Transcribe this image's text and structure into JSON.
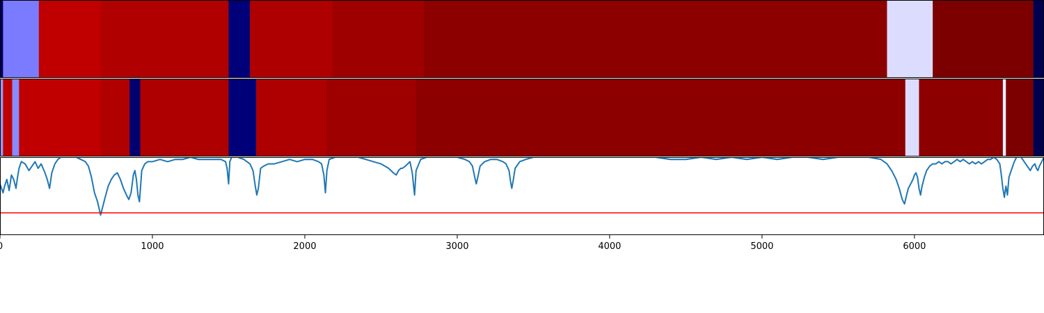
{
  "chart_data": {
    "type": "heatmap",
    "xlim": [
      0,
      6850
    ],
    "x_ticks": [
      0,
      1000,
      2000,
      3000,
      4000,
      5000,
      6000
    ],
    "x_tick_labels": [
      "0",
      "1000",
      "2000",
      "3000",
      "4000",
      "5000",
      "6000"
    ],
    "panels": [
      {
        "name": "",
        "kind": "segments",
        "segments": [
          {
            "start": 0,
            "end": 20,
            "color": "#000060"
          },
          {
            "start": 20,
            "end": 255,
            "color": "#7b7bff"
          },
          {
            "start": 255,
            "end": 660,
            "color": "#c00000"
          },
          {
            "start": 660,
            "end": 1500,
            "color": "#b00000"
          },
          {
            "start": 1500,
            "end": 1640,
            "color": "#000078"
          },
          {
            "start": 1640,
            "end": 2180,
            "color": "#ae0000"
          },
          {
            "start": 2180,
            "end": 2780,
            "color": "#9e0000"
          },
          {
            "start": 2780,
            "end": 5820,
            "color": "#8c0000"
          },
          {
            "start": 5820,
            "end": 6120,
            "color": "#dcdcff"
          },
          {
            "start": 6120,
            "end": 6780,
            "color": "#7c0000"
          },
          {
            "start": 6780,
            "end": 6850,
            "color": "#000050"
          }
        ]
      },
      {
        "name": "",
        "kind": "segments",
        "segments": [
          {
            "start": 0,
            "end": 20,
            "color": "#9a9aff"
          },
          {
            "start": 20,
            "end": 80,
            "color": "#c00000"
          },
          {
            "start": 80,
            "end": 125,
            "color": "#8a8aff"
          },
          {
            "start": 125,
            "end": 660,
            "color": "#c00000"
          },
          {
            "start": 660,
            "end": 850,
            "color": "#b00000"
          },
          {
            "start": 850,
            "end": 920,
            "color": "#000070"
          },
          {
            "start": 920,
            "end": 1500,
            "color": "#ae0000"
          },
          {
            "start": 1500,
            "end": 1680,
            "color": "#000078"
          },
          {
            "start": 1680,
            "end": 2140,
            "color": "#ae0000"
          },
          {
            "start": 2140,
            "end": 2730,
            "color": "#9e0000"
          },
          {
            "start": 2730,
            "end": 5940,
            "color": "#8c0000"
          },
          {
            "start": 5940,
            "end": 6030,
            "color": "#dcdcff"
          },
          {
            "start": 6030,
            "end": 6580,
            "color": "#8c0000"
          },
          {
            "start": 6580,
            "end": 6600,
            "color": "#eeeeff"
          },
          {
            "start": 6600,
            "end": 6780,
            "color": "#7c0000"
          },
          {
            "start": 6780,
            "end": 6850,
            "color": "#000050"
          }
        ]
      },
      {
        "name": "",
        "kind": "line",
        "ylim": [
          -0.35,
          0.0
        ],
        "line_color": "#1f77b4",
        "threshold": -0.25,
        "threshold_color": "#ff0000",
        "points": [
          [
            0,
            -0.12
          ],
          [
            10,
            -0.14
          ],
          [
            20,
            -0.16
          ],
          [
            30,
            -0.13
          ],
          [
            45,
            -0.1
          ],
          [
            60,
            -0.15
          ],
          [
            75,
            -0.08
          ],
          [
            90,
            -0.1
          ],
          [
            105,
            -0.14
          ],
          [
            115,
            -0.09
          ],
          [
            125,
            -0.05
          ],
          [
            140,
            -0.02
          ],
          [
            165,
            -0.03
          ],
          [
            190,
            -0.06
          ],
          [
            210,
            -0.04
          ],
          [
            230,
            -0.02
          ],
          [
            250,
            -0.05
          ],
          [
            270,
            -0.03
          ],
          [
            295,
            -0.07
          ],
          [
            310,
            -0.1
          ],
          [
            325,
            -0.14
          ],
          [
            340,
            -0.07
          ],
          [
            360,
            -0.03
          ],
          [
            380,
            -0.01
          ],
          [
            400,
            0.0
          ],
          [
            450,
            0.0
          ],
          [
            500,
            0.0
          ],
          [
            530,
            -0.01
          ],
          [
            560,
            -0.02
          ],
          [
            580,
            -0.04
          ],
          [
            600,
            -0.09
          ],
          [
            620,
            -0.16
          ],
          [
            640,
            -0.2
          ],
          [
            650,
            -0.23
          ],
          [
            660,
            -0.26
          ],
          [
            675,
            -0.22
          ],
          [
            690,
            -0.18
          ],
          [
            710,
            -0.13
          ],
          [
            730,
            -0.1
          ],
          [
            750,
            -0.08
          ],
          [
            770,
            -0.07
          ],
          [
            790,
            -0.1
          ],
          [
            810,
            -0.14
          ],
          [
            830,
            -0.17
          ],
          [
            845,
            -0.19
          ],
          [
            860,
            -0.16
          ],
          [
            875,
            -0.08
          ],
          [
            885,
            -0.06
          ],
          [
            895,
            -0.1
          ],
          [
            905,
            -0.17
          ],
          [
            915,
            -0.2
          ],
          [
            930,
            -0.06
          ],
          [
            950,
            -0.03
          ],
          [
            970,
            -0.02
          ],
          [
            1000,
            -0.02
          ],
          [
            1050,
            -0.01
          ],
          [
            1100,
            -0.02
          ],
          [
            1150,
            -0.01
          ],
          [
            1200,
            -0.01
          ],
          [
            1250,
            0.0
          ],
          [
            1300,
            -0.01
          ],
          [
            1350,
            -0.01
          ],
          [
            1400,
            -0.01
          ],
          [
            1450,
            -0.01
          ],
          [
            1480,
            -0.02
          ],
          [
            1490,
            -0.05
          ],
          [
            1500,
            -0.12
          ],
          [
            1508,
            -0.02
          ],
          [
            1520,
            0.0
          ],
          [
            1560,
            0.0
          ],
          [
            1600,
            -0.01
          ],
          [
            1640,
            -0.03
          ],
          [
            1660,
            -0.06
          ],
          [
            1675,
            -0.13
          ],
          [
            1685,
            -0.17
          ],
          [
            1695,
            -0.14
          ],
          [
            1710,
            -0.05
          ],
          [
            1730,
            -0.04
          ],
          [
            1760,
            -0.03
          ],
          [
            1800,
            -0.03
          ],
          [
            1850,
            -0.02
          ],
          [
            1900,
            -0.01
          ],
          [
            1950,
            -0.02
          ],
          [
            2000,
            -0.01
          ],
          [
            2050,
            -0.01
          ],
          [
            2090,
            -0.02
          ],
          [
            2110,
            -0.03
          ],
          [
            2125,
            -0.08
          ],
          [
            2135,
            -0.16
          ],
          [
            2145,
            -0.06
          ],
          [
            2160,
            -0.01
          ],
          [
            2200,
            0.0
          ],
          [
            2250,
            0.0
          ],
          [
            2300,
            0.0
          ],
          [
            2350,
            0.0
          ],
          [
            2400,
            -0.01
          ],
          [
            2450,
            -0.02
          ],
          [
            2500,
            -0.03
          ],
          [
            2550,
            -0.05
          ],
          [
            2580,
            -0.07
          ],
          [
            2600,
            -0.08
          ],
          [
            2615,
            -0.06
          ],
          [
            2630,
            -0.05
          ],
          [
            2640,
            -0.05
          ],
          [
            2660,
            -0.04
          ],
          [
            2690,
            -0.02
          ],
          [
            2705,
            -0.07
          ],
          [
            2720,
            -0.17
          ],
          [
            2730,
            -0.06
          ],
          [
            2760,
            -0.01
          ],
          [
            2800,
            0.0
          ],
          [
            2850,
            0.0
          ],
          [
            2900,
            0.0
          ],
          [
            2950,
            0.0
          ],
          [
            3000,
            0.0
          ],
          [
            3050,
            -0.01
          ],
          [
            3080,
            -0.02
          ],
          [
            3100,
            -0.04
          ],
          [
            3115,
            -0.09
          ],
          [
            3125,
            -0.12
          ],
          [
            3135,
            -0.09
          ],
          [
            3150,
            -0.04
          ],
          [
            3180,
            -0.02
          ],
          [
            3220,
            -0.01
          ],
          [
            3260,
            -0.01
          ],
          [
            3300,
            -0.02
          ],
          [
            3320,
            -0.03
          ],
          [
            3340,
            -0.06
          ],
          [
            3350,
            -0.11
          ],
          [
            3358,
            -0.14
          ],
          [
            3366,
            -0.11
          ],
          [
            3380,
            -0.05
          ],
          [
            3410,
            -0.02
          ],
          [
            3450,
            -0.01
          ],
          [
            3500,
            0.0
          ],
          [
            3600,
            0.0
          ],
          [
            3700,
            0.0
          ],
          [
            3800,
            0.0
          ],
          [
            3900,
            0.0
          ],
          [
            4000,
            0.0
          ],
          [
            4100,
            0.0
          ],
          [
            4200,
            0.0
          ],
          [
            4300,
            0.0
          ],
          [
            4400,
            -0.01
          ],
          [
            4500,
            -0.01
          ],
          [
            4600,
            0.0
          ],
          [
            4700,
            -0.01
          ],
          [
            4800,
            0.0
          ],
          [
            4900,
            -0.01
          ],
          [
            5000,
            0.0
          ],
          [
            5100,
            -0.01
          ],
          [
            5200,
            0.0
          ],
          [
            5300,
            0.0
          ],
          [
            5400,
            -0.01
          ],
          [
            5500,
            0.0
          ],
          [
            5600,
            0.0
          ],
          [
            5700,
            0.0
          ],
          [
            5780,
            -0.01
          ],
          [
            5820,
            -0.03
          ],
          [
            5850,
            -0.06
          ],
          [
            5880,
            -0.1
          ],
          [
            5900,
            -0.14
          ],
          [
            5920,
            -0.19
          ],
          [
            5935,
            -0.21
          ],
          [
            5945,
            -0.18
          ],
          [
            5960,
            -0.14
          ],
          [
            5975,
            -0.12
          ],
          [
            5990,
            -0.1
          ],
          [
            6000,
            -0.08
          ],
          [
            6010,
            -0.07
          ],
          [
            6020,
            -0.09
          ],
          [
            6030,
            -0.14
          ],
          [
            6040,
            -0.17
          ],
          [
            6050,
            -0.13
          ],
          [
            6065,
            -0.09
          ],
          [
            6080,
            -0.06
          ],
          [
            6100,
            -0.04
          ],
          [
            6120,
            -0.03
          ],
          [
            6140,
            -0.03
          ],
          [
            6160,
            -0.02
          ],
          [
            6180,
            -0.03
          ],
          [
            6200,
            -0.02
          ],
          [
            6220,
            -0.02
          ],
          [
            6240,
            -0.03
          ],
          [
            6260,
            -0.02
          ],
          [
            6280,
            -0.01
          ],
          [
            6300,
            -0.02
          ],
          [
            6320,
            -0.01
          ],
          [
            6340,
            -0.02
          ],
          [
            6360,
            -0.03
          ],
          [
            6380,
            -0.02
          ],
          [
            6400,
            -0.03
          ],
          [
            6420,
            -0.02
          ],
          [
            6440,
            -0.03
          ],
          [
            6460,
            -0.02
          ],
          [
            6480,
            -0.01
          ],
          [
            6500,
            -0.01
          ],
          [
            6520,
            0.0
          ],
          [
            6540,
            -0.01
          ],
          [
            6560,
            -0.03
          ],
          [
            6570,
            -0.08
          ],
          [
            6580,
            -0.14
          ],
          [
            6590,
            -0.18
          ],
          [
            6600,
            -0.13
          ],
          [
            6610,
            -0.17
          ],
          [
            6620,
            -0.09
          ],
          [
            6640,
            -0.05
          ],
          [
            6655,
            -0.02
          ],
          [
            6670,
            0.0
          ],
          [
            6700,
            0.0
          ],
          [
            6720,
            -0.02
          ],
          [
            6740,
            -0.04
          ],
          [
            6760,
            -0.06
          ],
          [
            6775,
            -0.04
          ],
          [
            6790,
            -0.03
          ],
          [
            6800,
            -0.05
          ],
          [
            6810,
            -0.06
          ],
          [
            6820,
            -0.04
          ],
          [
            6835,
            -0.02
          ],
          [
            6850,
            0.0
          ]
        ]
      }
    ]
  }
}
